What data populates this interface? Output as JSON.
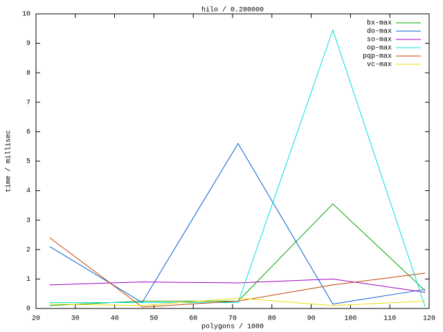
{
  "chart_data": {
    "type": "line",
    "title": "hilo / 0.280000",
    "x_label": "polygons / 1000",
    "y_label": "time / millisec",
    "x": [
      23.5,
      47,
      71.4,
      95.5,
      119
    ],
    "series": [
      {
        "name": "bx-max",
        "color": "#00a000",
        "values": [
          0.1,
          0.25,
          0.25,
          3.55,
          0.6
        ]
      },
      {
        "name": "do-max",
        "color": "#0060d0",
        "values": [
          2.1,
          0.2,
          5.6,
          0.15,
          0.65
        ]
      },
      {
        "name": "so-max",
        "color": "#a000c0",
        "values": [
          0.8,
          0.9,
          0.87,
          1.0,
          0.55
        ]
      },
      {
        "name": "op-max",
        "color": "#00e0e0",
        "values": [
          0.2,
          0.2,
          0.2,
          9.45,
          0.05
        ]
      },
      {
        "name": "pqp-max",
        "color": "#c04000",
        "values": [
          2.4,
          0.05,
          0.25,
          0.8,
          1.2
        ]
      },
      {
        "name": "vc-max",
        "color": "#e8e000",
        "values": [
          0.15,
          0.1,
          0.35,
          0.1,
          0.25
        ]
      }
    ],
    "xlim": [
      20,
      120
    ],
    "xticks": [
      20,
      30,
      40,
      50,
      60,
      70,
      80,
      90,
      100,
      110,
      120
    ],
    "ylim": [
      0,
      10
    ],
    "yticks": [
      0,
      1,
      2,
      3,
      4,
      5,
      6,
      7,
      8,
      9,
      10
    ],
    "grid": false,
    "legend": "upper right"
  }
}
